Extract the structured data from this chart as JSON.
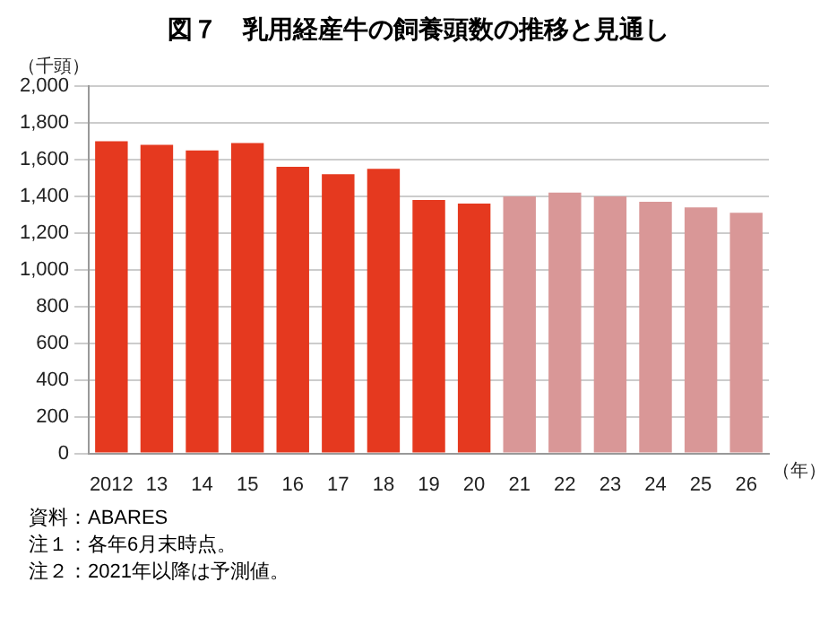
{
  "chart_data": {
    "type": "bar",
    "title": "図７　乳用経産牛の飼養頭数の推移と見通し",
    "ylabel": "（千頭）",
    "xlabel": "（年）",
    "categories": [
      "2012",
      "13",
      "14",
      "15",
      "16",
      "17",
      "18",
      "19",
      "20",
      "21",
      "22",
      "23",
      "24",
      "25",
      "26"
    ],
    "values": [
      1700,
      1680,
      1650,
      1690,
      1560,
      1520,
      1550,
      1380,
      1360,
      1400,
      1420,
      1400,
      1370,
      1340,
      1310
    ],
    "colors": [
      "#e5391f",
      "#e5391f",
      "#e5391f",
      "#e5391f",
      "#e5391f",
      "#e5391f",
      "#e5391f",
      "#e5391f",
      "#e5391f",
      "#d99797",
      "#d99797",
      "#d99797",
      "#d99797",
      "#d99797",
      "#d99797"
    ],
    "ylim": [
      0,
      2000
    ],
    "yticks": [
      {
        "value": 0,
        "label": "0"
      },
      {
        "value": 200,
        "label": "200"
      },
      {
        "value": 400,
        "label": "400"
      },
      {
        "value": 600,
        "label": "600"
      },
      {
        "value": 800,
        "label": "800"
      },
      {
        "value": 1000,
        "label": "1,000"
      },
      {
        "value": 1200,
        "label": "1,200"
      },
      {
        "value": 1400,
        "label": "1,400"
      },
      {
        "value": 1600,
        "label": "1,600"
      },
      {
        "value": 1800,
        "label": "1,800"
      },
      {
        "value": 2000,
        "label": "2,000"
      }
    ],
    "grid": "y",
    "legend": false,
    "annotations": [
      "資料：ABARES",
      "注１：各年6月末時点。",
      "注２：2021年以降は予測値。"
    ]
  }
}
